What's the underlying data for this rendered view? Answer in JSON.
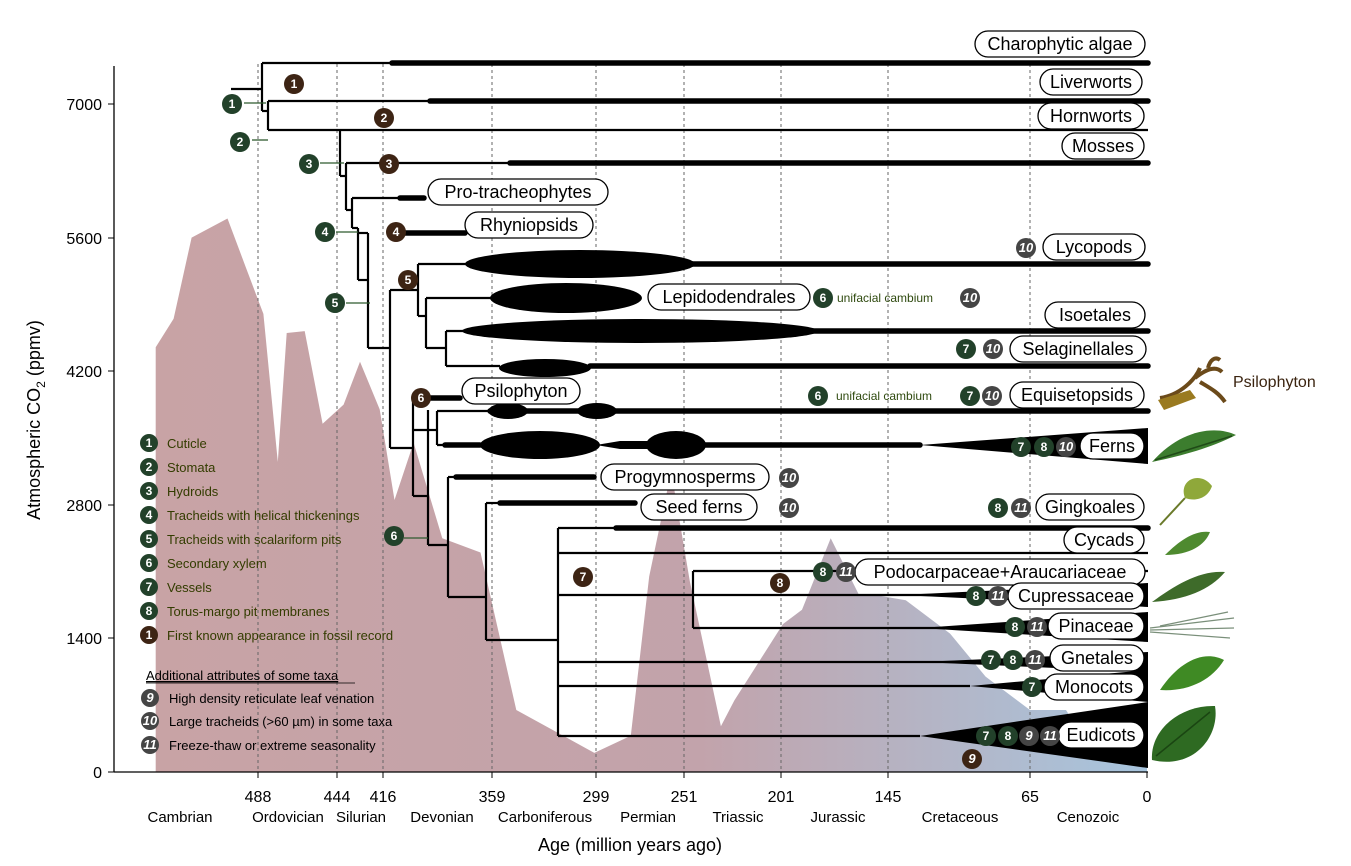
{
  "colors": {
    "co2_fill_start": "#c9a3a5",
    "co2_fill_end": "#a9c4dc",
    "trait_green": "#22412a",
    "fossil_brown": "#3d2414",
    "attribute_grey": "#454545"
  },
  "y_axis": {
    "title_main": "Atmospheric CO",
    "title_sub": "2",
    "title_units": " (ppmv)",
    "ticks": [
      "0",
      "1400",
      "2800",
      "4200",
      "5600",
      "7000"
    ]
  },
  "x_axis": {
    "title": "Age (million years ago)",
    "ticks": [
      "488",
      "444",
      "416",
      "359",
      "299",
      "251",
      "201",
      "145",
      "65",
      "0"
    ],
    "periods": [
      "Cambrian",
      "Ordovician",
      "Silurian",
      "Devonian",
      "Carboniferous",
      "Permian",
      "Triassic",
      "Jurassic",
      "Cretaceous",
      "Cenozoic"
    ]
  },
  "taxa": {
    "charophytic_algae": "Charophytic algae",
    "liverworts": "Liverworts",
    "hornworts": "Hornworts",
    "mosses": "Mosses",
    "pro_tracheophytes": "Pro-tracheophytes",
    "rhyniopsids": "Rhyniopsids",
    "lycopods": "Lycopods",
    "lepidodendrales": "Lepidodendrales",
    "isoetales": "Isoetales",
    "selaginellales": "Selaginellales",
    "psilophyton": "Psilophyton",
    "equisetopsids": "Equisetopsids",
    "ferns": "Ferns",
    "progymnosperms": "Progymnosperms",
    "seed_ferns": "Seed ferns",
    "gingkoales": "Gingkoales",
    "cycads": "Cycads",
    "podocarpaceae": "Podocarpaceae+Araucariaceae",
    "cupressaceae": "Cupressaceae",
    "pinaceae": "Pinaceae",
    "gnetales": "Gnetales",
    "monocots": "Monocots",
    "eudicots": "Eudicots"
  },
  "annotations": {
    "unifacial_1": "unifacial cambium",
    "unifacial_2": "unifacial cambium",
    "psilophyton_image_label": "Psilophyton"
  },
  "legend": {
    "traits": [
      {
        "num": "1",
        "label": "Cuticle"
      },
      {
        "num": "2",
        "label": "Stomata"
      },
      {
        "num": "3",
        "label": "Hydroids"
      },
      {
        "num": "4",
        "label": "Tracheids with helical thickenings"
      },
      {
        "num": "5",
        "label": "Tracheids with scalariform pits"
      },
      {
        "num": "6",
        "label": "Secondary xylem"
      },
      {
        "num": "7",
        "label": "Vessels"
      },
      {
        "num": "8",
        "label": "Torus-margo pit membranes"
      }
    ],
    "fossil": {
      "num": "1",
      "label": "First known appearance in fossil record"
    },
    "attributes_title": "Additional attributes of some taxa",
    "attributes": [
      {
        "num": "9",
        "label": "High density reticulate leaf venation"
      },
      {
        "num": "10",
        "label": "Large tracheids (>60 µm) in some taxa"
      },
      {
        "num": "11",
        "label": "Freeze-thaw or extreme seasonality"
      }
    ]
  },
  "badges": {
    "n1": "1",
    "n2": "2",
    "n3": "3",
    "n4": "4",
    "n5": "5",
    "n6": "6",
    "n7": "7",
    "n8": "8",
    "n9": "9",
    "n10": "10",
    "n11": "11"
  },
  "co2_curve_ppmv": [
    {
      "age": 545,
      "co2": 4450
    },
    {
      "age": 535,
      "co2": 4750
    },
    {
      "age": 525,
      "co2": 5600
    },
    {
      "age": 505,
      "co2": 5800
    },
    {
      "age": 495,
      "co2": 5300
    },
    {
      "age": 485,
      "co2": 4800
    },
    {
      "age": 477,
      "co2": 3250
    },
    {
      "age": 472,
      "co2": 4600
    },
    {
      "age": 462,
      "co2": 4620
    },
    {
      "age": 452,
      "co2": 3650
    },
    {
      "age": 440,
      "co2": 3850
    },
    {
      "age": 430,
      "co2": 4300
    },
    {
      "age": 418,
      "co2": 3800
    },
    {
      "age": 410,
      "co2": 2850
    },
    {
      "age": 400,
      "co2": 3450
    },
    {
      "age": 385,
      "co2": 2450
    },
    {
      "age": 365,
      "co2": 2300
    },
    {
      "age": 345,
      "co2": 650
    },
    {
      "age": 320,
      "co2": 400
    },
    {
      "age": 300,
      "co2": 200
    },
    {
      "age": 280,
      "co2": 380
    },
    {
      "age": 270,
      "co2": 2050
    },
    {
      "age": 258,
      "co2": 3150
    },
    {
      "age": 248,
      "co2": 2000
    },
    {
      "age": 232,
      "co2": 480
    },
    {
      "age": 225,
      "co2": 750
    },
    {
      "age": 200,
      "co2": 1550
    },
    {
      "age": 190,
      "co2": 1700
    },
    {
      "age": 175,
      "co2": 2450
    },
    {
      "age": 160,
      "co2": 1850
    },
    {
      "age": 150,
      "co2": 1850
    },
    {
      "age": 135,
      "co2": 1800
    },
    {
      "age": 110,
      "co2": 1450
    },
    {
      "age": 90,
      "co2": 1000
    },
    {
      "age": 65,
      "co2": 650
    },
    {
      "age": 45,
      "co2": 650
    },
    {
      "age": 30,
      "co2": 200
    },
    {
      "age": 0,
      "co2": 200
    }
  ]
}
